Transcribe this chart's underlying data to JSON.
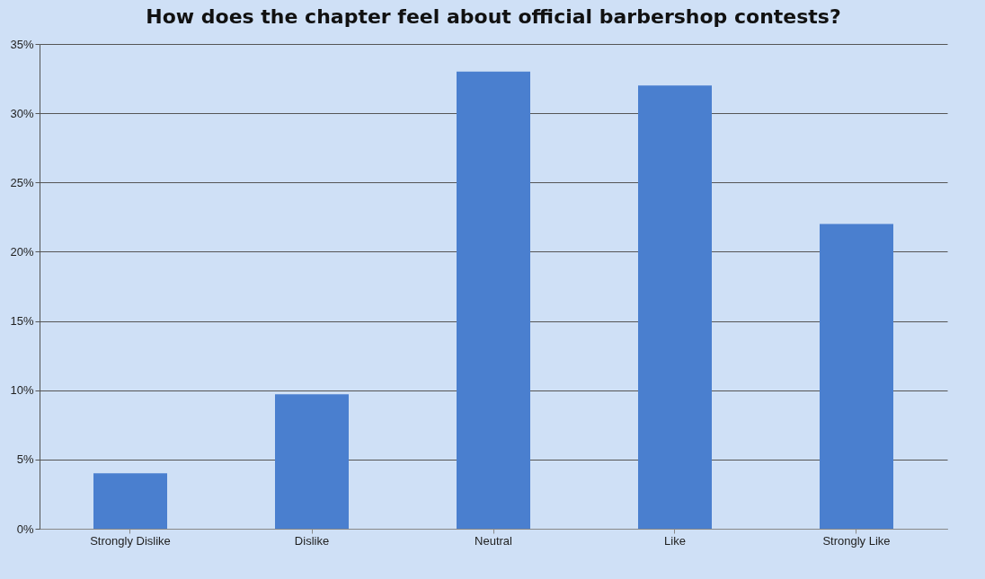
{
  "chart_data": {
    "type": "bar",
    "title": "How does the chapter feel about official barbershop contests?",
    "categories": [
      "Strongly Dislike",
      "Dislike",
      "Neutral",
      "Like",
      "Strongly Like"
    ],
    "values": [
      4,
      9.7,
      33,
      32,
      22
    ],
    "color": "#4a7fcf",
    "ylim": [
      0,
      35
    ],
    "yticks": [
      {
        "value": 0,
        "label": "0%"
      },
      {
        "value": 5,
        "label": "5%"
      },
      {
        "value": 10,
        "label": "10%"
      },
      {
        "value": 15,
        "label": "15%"
      },
      {
        "value": 20,
        "label": "20%"
      },
      {
        "value": 25,
        "label": "25%"
      },
      {
        "value": 30,
        "label": "30%"
      },
      {
        "value": 35,
        "label": "35%"
      }
    ],
    "grid": "y"
  }
}
